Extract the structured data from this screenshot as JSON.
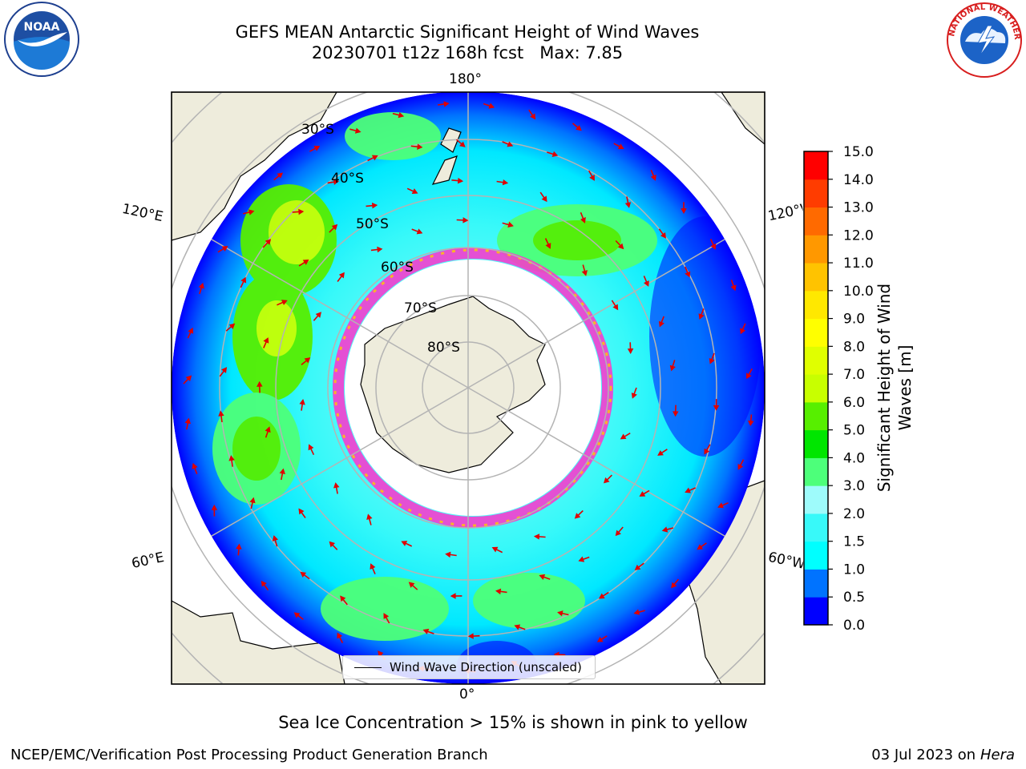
{
  "header": {
    "title_line1": "GEFS MEAN Antarctic Significant Height of Wind Waves",
    "title_line2": "20230701 t12z 168h fcst   Max: 7.85"
  },
  "logos": {
    "left": {
      "icon": "noaa-logo-icon",
      "text": "NOAA",
      "ring_text": "NATIONAL OCEANIC AND ATMOSPHERIC ADMINISTRATION · U.S. DEPARTMENT OF COMMERCE"
    },
    "right": {
      "icon": "national-weather-service-logo-icon",
      "ring_text": "NATIONAL WEATHER SERVICE"
    }
  },
  "map": {
    "projection": "south polar stereographic",
    "longitude_labels": {
      "top": "180°",
      "bottom": "0°",
      "left_upper": "120°E",
      "left_lower": "60°E",
      "right_upper": "120°W",
      "right_lower": "60°W"
    },
    "latitude_labels": [
      "30°S",
      "40°S",
      "50°S",
      "60°S",
      "70°S",
      "80°S"
    ],
    "legend_label": "Wind Wave Direction (unscaled)",
    "colors": {
      "land": "#eeecdc",
      "ice_edge": "#ff33cc",
      "arrows": "#e00000",
      "graticule": "#b4b4b4"
    }
  },
  "colorbar": {
    "label": "Significant Height of Wind\nWaves [m]",
    "ticks": [
      "0.0",
      "0.5",
      "1.0",
      "1.5",
      "2.0",
      "3.0",
      "4.0",
      "5.0",
      "6.0",
      "7.0",
      "8.0",
      "9.0",
      "10.0",
      "11.0",
      "12.0",
      "13.0",
      "14.0",
      "15.0"
    ],
    "colors": [
      "#0000ff",
      "#0073ff",
      "#00ffff",
      "#38f9f9",
      "#9efbfb",
      "#4dff7a",
      "#00e600",
      "#57ef00",
      "#c8ff00",
      "#e0ff00",
      "#ffff00",
      "#ffe800",
      "#ffc300",
      "#ff9800",
      "#ff6a00",
      "#ff3c00",
      "#ff0000"
    ]
  },
  "footer": {
    "note": "Sea Ice Concentration > 15% is shown in pink to yellow",
    "credit": "NCEP/EMC/Verification Post Processing Product Generation Branch",
    "date_prefix": "03 Jul 2023 on ",
    "date_machine": "Hera"
  }
}
